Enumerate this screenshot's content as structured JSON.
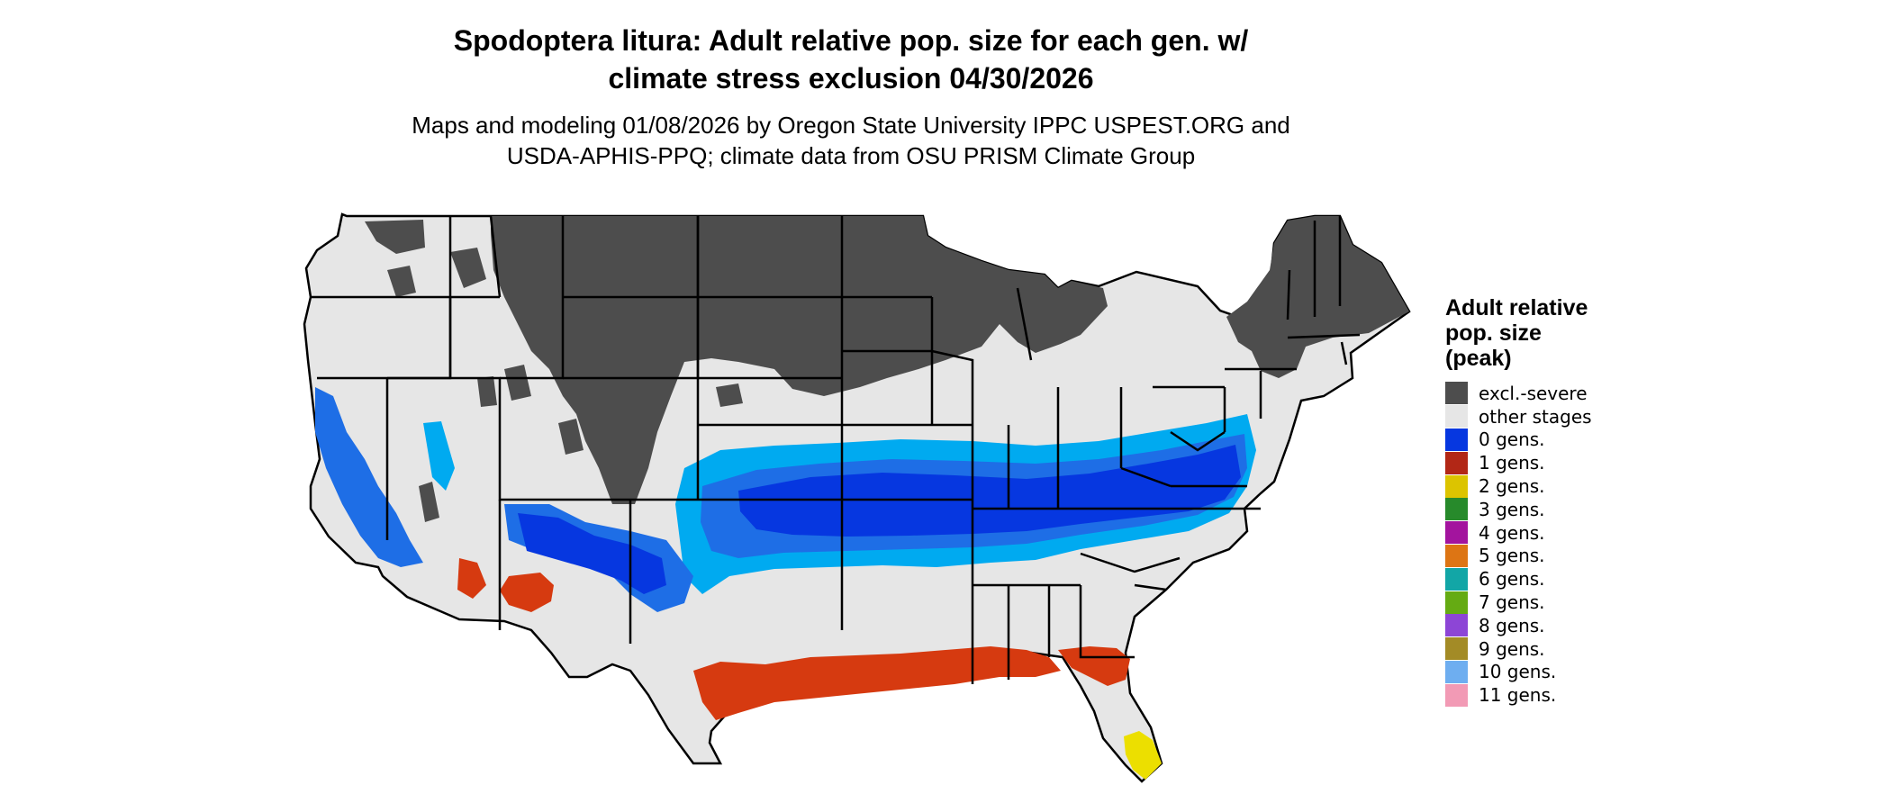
{
  "title": {
    "line1": "Spodoptera litura: Adult relative pop. size for each gen. w/",
    "line2": "climate stress exclusion 04/30/2026"
  },
  "subtitle": {
    "line1": "Maps and modeling 01/08/2026 by Oregon State University IPPC USPEST.ORG and",
    "line2": "USDA-APHIS-PPQ; climate data from OSU PRISM Climate Group"
  },
  "legend": {
    "title_line1": "Adult relative",
    "title_line2": "pop. size",
    "title_line3": "(peak)",
    "items": [
      {
        "label": "excl.-severe",
        "color": "#4d4d4d"
      },
      {
        "label": "other stages",
        "color": "#e6e6e6"
      },
      {
        "label": "0 gens.",
        "color": "#0637e0"
      },
      {
        "label": "1 gens.",
        "color": "#b22716"
      },
      {
        "label": "2 gens.",
        "color": "#dcc400"
      },
      {
        "label": "3 gens.",
        "color": "#278a2b"
      },
      {
        "label": "4 gens.",
        "color": "#a3149e"
      },
      {
        "label": "5 gens.",
        "color": "#dd7514"
      },
      {
        "label": "6 gens.",
        "color": "#12a6a6"
      },
      {
        "label": "7 gens.",
        "color": "#65ab13"
      },
      {
        "label": "8 gens.",
        "color": "#8d45d6"
      },
      {
        "label": "9 gens.",
        "color": "#a38b26"
      },
      {
        "label": "10 gens.",
        "color": "#6eaef0"
      },
      {
        "label": "11 gens.",
        "color": "#f29ab5"
      }
    ]
  },
  "map": {
    "colors": {
      "excluded": "#4d4d4d",
      "other": "#e6e6e6",
      "light_blue": "#00aaf0",
      "mid_blue": "#1e6ee6",
      "gen0": "#0637e0",
      "gen1": "#d63a10",
      "gen2": "#ecdf00",
      "state_border": "#000000"
    }
  }
}
